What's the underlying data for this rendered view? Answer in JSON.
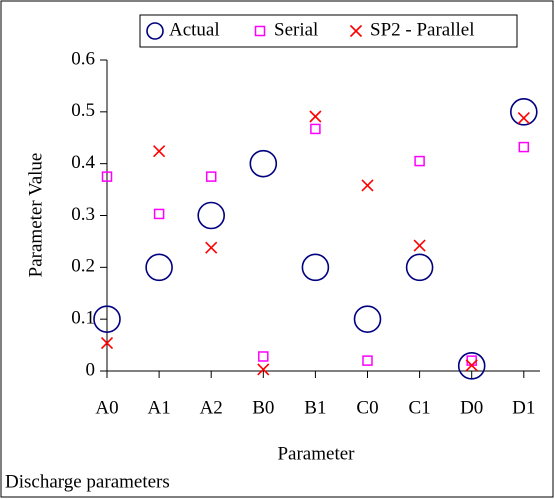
{
  "chart_data": {
    "type": "scatter",
    "title": "Discharge parameters",
    "x_label": "Parameter",
    "y_label": "Parameter Value",
    "categories": [
      "A0",
      "A1",
      "A2",
      "B0",
      "B1",
      "C0",
      "C1",
      "D0",
      "D1"
    ],
    "ylim": [
      0,
      0.6
    ],
    "yticks": [
      0,
      0.1,
      0.2,
      0.3,
      0.4,
      0.5,
      0.6
    ],
    "legend": "top",
    "series": [
      {
        "name": "Actual",
        "color": "#000080",
        "marker": "circle",
        "values": [
          0.1,
          0.2,
          0.3,
          0.4,
          0.2,
          0.1,
          0.2,
          0.01,
          0.5
        ]
      },
      {
        "name": "Serial",
        "color": "#ff00ff",
        "marker": "square",
        "values": [
          0.375,
          0.303,
          0.375,
          0.028,
          0.467,
          0.02,
          0.405,
          0.02,
          0.432
        ]
      },
      {
        "name": "SP2 - Parallel",
        "color": "#ff0000",
        "marker": "x",
        "values": [
          0.054,
          0.424,
          0.238,
          0.003,
          0.491,
          0.358,
          0.242,
          0.011,
          0.488
        ]
      }
    ]
  }
}
